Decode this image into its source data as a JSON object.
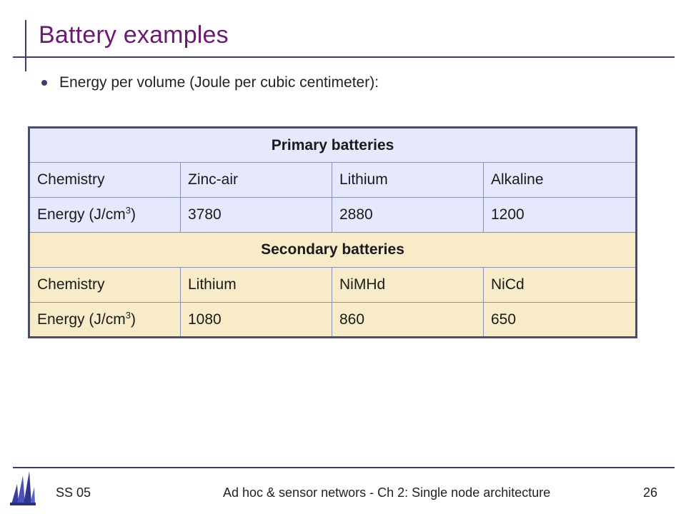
{
  "slide": {
    "title": "Battery examples",
    "bullet": "Energy per volume (Joule per cubic centimeter):"
  },
  "table": {
    "primary": {
      "header": "Primary batteries",
      "chemistry_label": "Chemistry",
      "chemistries": [
        "Zinc-air",
        "Lithium",
        "Alkaline"
      ],
      "energy_label": "Energy (J/cm",
      "energy_unit_sup": "3",
      "energy_label_close": ")",
      "energies": [
        "3780",
        "2880",
        "1200"
      ]
    },
    "secondary": {
      "header": "Secondary batteries",
      "chemistry_label": "Chemistry",
      "chemistries": [
        "Lithium",
        "NiMHd",
        "NiCd"
      ],
      "energy_label": "Energy (J/cm",
      "energy_unit_sup": "3",
      "energy_label_close": ")",
      "energies": [
        "1080",
        "860",
        "650"
      ]
    }
  },
  "footer": {
    "left": "SS 05",
    "center": "Ad hoc & sensor networs - Ch 2: Single node architecture",
    "page_number": "26"
  },
  "colors": {
    "title": "#6b1a73",
    "rule": "#3b3b6e",
    "primary_fill": "#e6e9fb",
    "secondary_fill": "#f7ebc8",
    "table_border": "#454a80"
  },
  "icons": {
    "logo": "university-logo-icon",
    "bullet": "bullet-dot-icon"
  }
}
